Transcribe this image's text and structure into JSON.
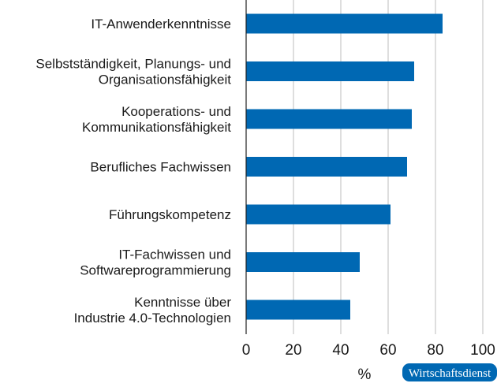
{
  "chart_data": {
    "type": "bar",
    "orientation": "horizontal",
    "categories": [
      [
        "IT-Anwenderkenntnisse"
      ],
      [
        "Selbstständigkeit, Planungs- und",
        "Organisationsfähigkeit"
      ],
      [
        "Kooperations- und",
        "Kommunikationsfähigkeit"
      ],
      [
        "Berufliches Fachwissen"
      ],
      [
        "Führungskompetenz"
      ],
      [
        "IT-Fachwissen und",
        "Softwareprogrammierung"
      ],
      [
        "Kenntnisse über",
        "Industrie 4.0-Technologien"
      ]
    ],
    "values": [
      83,
      71,
      70,
      68,
      61,
      48,
      44
    ],
    "xlabel": "%",
    "xlim": [
      0,
      100
    ],
    "xticks": [
      "0",
      "20",
      "40",
      "60",
      "80",
      "100"
    ],
    "grid": true,
    "bar_color": "#0068b3",
    "grid_color": "#c8c8c8"
  },
  "branding": {
    "label": "Wirtschaftsdienst",
    "color": "#0068b3"
  }
}
